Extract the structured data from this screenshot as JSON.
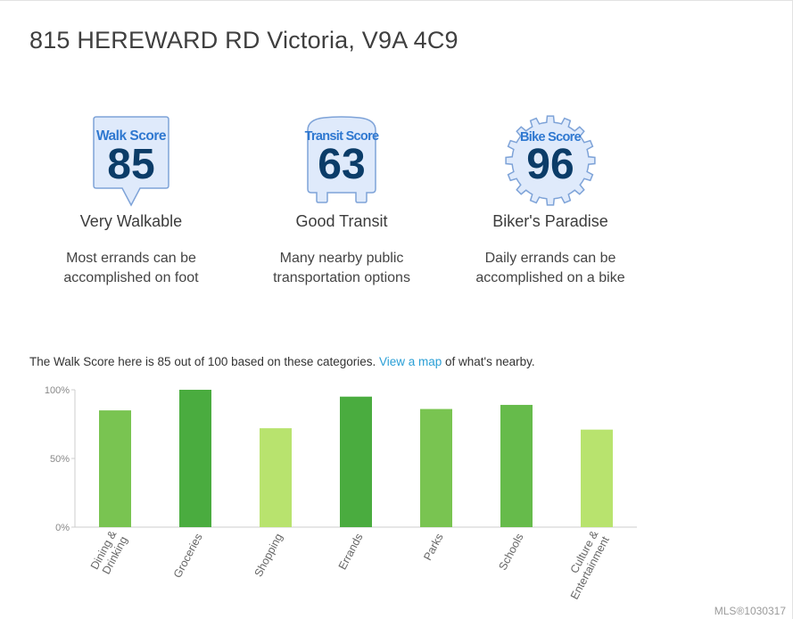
{
  "address": "815 HEREWARD RD Victoria, V9A 4C9",
  "scores": [
    {
      "badge_title": "Walk Score",
      "value": "85",
      "label": "Very Walkable",
      "desc_line1": "Most errands can be",
      "desc_line2": "accomplished on foot"
    },
    {
      "badge_title": "Transit Score",
      "value": "63",
      "label": "Good Transit",
      "desc_line1": "Many nearby public",
      "desc_line2": "transportation options"
    },
    {
      "badge_title": "Bike Score",
      "value": "96",
      "label": "Biker's Paradise",
      "desc_line1": "Daily errands can be",
      "desc_line2": "accomplished on a bike"
    }
  ],
  "summary": {
    "before": "The Walk Score here is 85 out of 100 based on these categories. ",
    "link": "View a map",
    "after": " of what's nearby."
  },
  "chart_data": {
    "type": "bar",
    "categories": [
      "Dining & Drinking",
      "Groceries",
      "Shopping",
      "Errands",
      "Parks",
      "Schools",
      "Culture & Entertainment"
    ],
    "values": [
      85,
      100,
      72,
      95,
      86,
      89,
      71
    ],
    "colors": [
      "#79c451",
      "#4aac3f",
      "#b8e36e",
      "#4aac3f",
      "#79c451",
      "#66bb4b",
      "#b8e36e"
    ],
    "yticks": [
      "100%",
      "50%",
      "0%"
    ],
    "ylim": [
      0,
      100
    ]
  },
  "footer": {
    "mls": "MLS®1030317"
  },
  "colors": {
    "badge_fill": "#dfeafb",
    "badge_stroke": "#7ea3d8",
    "badge_title": "#2f78d0",
    "badge_number": "#0b3c68",
    "link": "#2a9fd6"
  }
}
